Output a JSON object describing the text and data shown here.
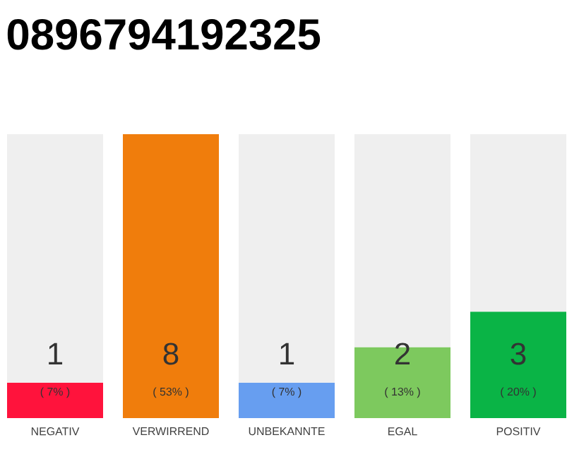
{
  "chart_data": {
    "type": "bar",
    "title": "0896794192325",
    "categories": [
      "NEGATIV",
      "VERWIRREND",
      "UNBEKANNTE",
      "EGAL",
      "POSITIV"
    ],
    "stacked": true,
    "ylim": [
      0,
      8
    ],
    "series": [
      {
        "colors": [
          "#ff133c",
          "#f07d0c",
          "#679ef0",
          "#7dc95e",
          "#0ab446"
        ],
        "values": [
          1,
          8,
          1,
          2,
          3
        ],
        "value_labels": [
          "1",
          "8",
          "1",
          "2",
          "3"
        ]
      },
      {
        "color": "#efefef",
        "values": [
          7,
          0,
          7,
          6,
          5
        ]
      }
    ],
    "annotations": [
      "( 7% )",
      "( 53% )",
      "( 7% )",
      "( 13% )",
      "( 20% )"
    ]
  }
}
